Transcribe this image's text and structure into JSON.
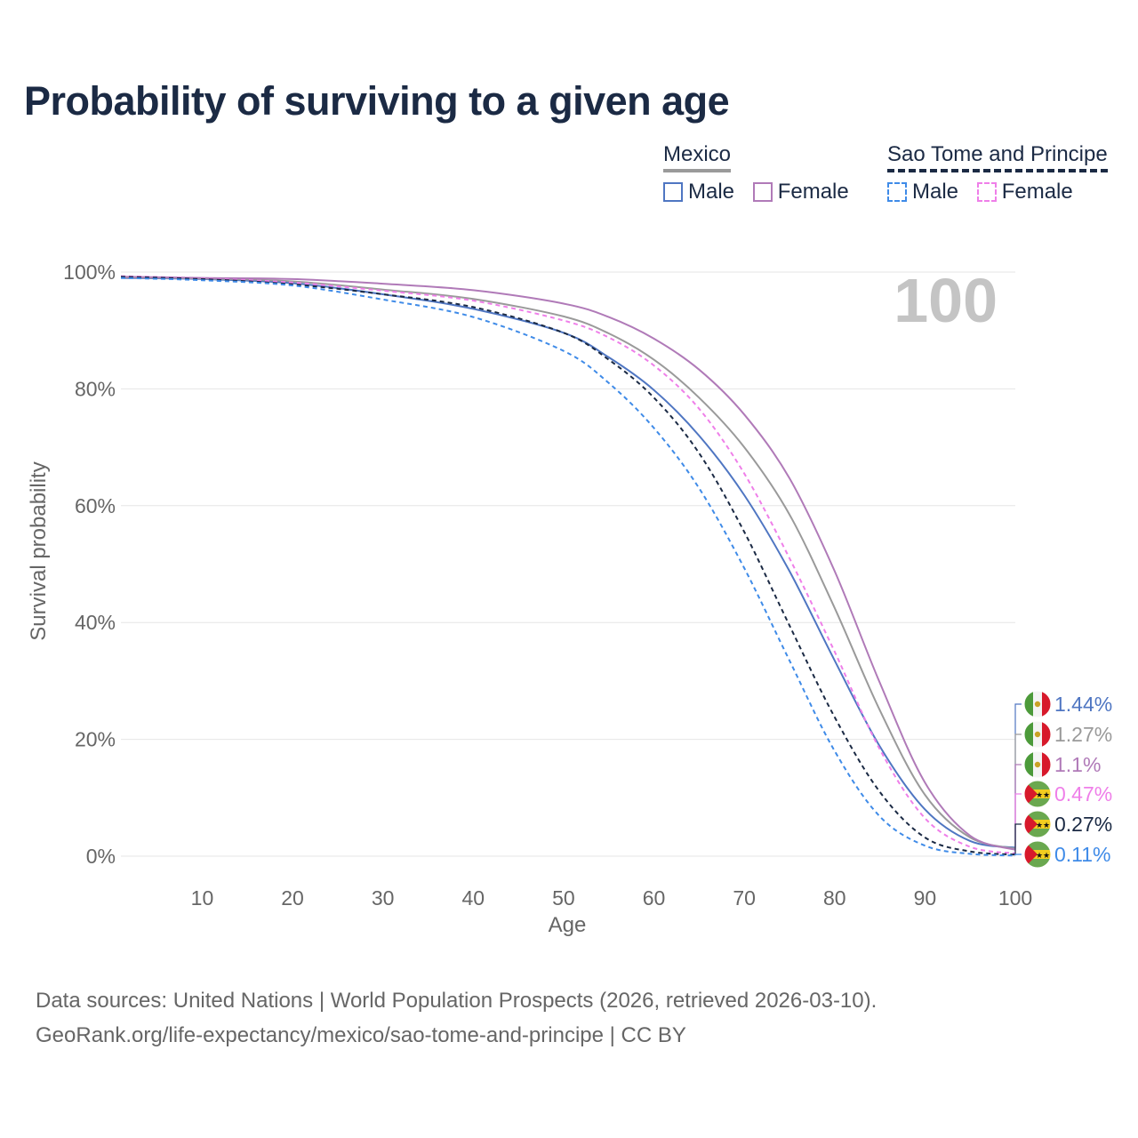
{
  "title": "Probability of surviving to a given age",
  "legend": {
    "groups": [
      {
        "name": "Mexico",
        "items": [
          "Male",
          "Female"
        ]
      },
      {
        "name": "Sao Tome and Principe",
        "items": [
          "Male",
          "Female"
        ]
      }
    ]
  },
  "colors": {
    "mexico_male": "#4f76c2",
    "mexico_female": "#b07ab8",
    "mexico_total": "#9a9a9a",
    "stp_male": "#3f8be8",
    "stp_female": "#ef7fe9",
    "stp_total": "#1b2a44"
  },
  "chart_data": {
    "type": "line",
    "xlabel": "Age",
    "ylabel": "Survival probability",
    "xlim": [
      1,
      100
    ],
    "ylim": [
      0,
      100
    ],
    "x_ticks": [
      10,
      20,
      30,
      40,
      50,
      60,
      70,
      80,
      90,
      100
    ],
    "y_ticks": [
      "0%",
      "20%",
      "40%",
      "60%",
      "80%",
      "100%"
    ],
    "y_tick_values": [
      0,
      20,
      40,
      60,
      80,
      100
    ],
    "age_label": "100",
    "x": [
      1,
      10,
      20,
      30,
      40,
      50,
      55,
      60,
      65,
      70,
      75,
      80,
      85,
      90,
      95,
      100
    ],
    "series": [
      {
        "name": "Mexico Male",
        "key": "mexico_male",
        "dash": false,
        "values": [
          99.0,
          98.8,
          98.1,
          96.2,
          93.7,
          89.6,
          85.4,
          79.8,
          72.0,
          61.8,
          48.8,
          33.5,
          18.8,
          8.0,
          2.6,
          1.44
        ]
      },
      {
        "name": "Mexico Total",
        "key": "mexico_total",
        "dash": false,
        "values": [
          99.1,
          98.9,
          98.4,
          97.0,
          95.4,
          92.4,
          89.5,
          85.0,
          78.5,
          70.0,
          58.5,
          42.5,
          25.0,
          10.5,
          3.2,
          1.27
        ]
      },
      {
        "name": "Mexico Female",
        "key": "mexico_female",
        "dash": false,
        "values": [
          99.2,
          99.0,
          98.8,
          98.0,
          96.9,
          94.6,
          92.3,
          88.6,
          83.3,
          75.6,
          64.7,
          48.8,
          29.7,
          12.6,
          3.5,
          1.1
        ]
      },
      {
        "name": "Sao Tome and Principe Female",
        "key": "stp_female",
        "dash": true,
        "values": [
          99.3,
          98.9,
          98.2,
          96.8,
          95.1,
          91.7,
          88.8,
          84.0,
          76.6,
          65.5,
          51.0,
          35.0,
          18.3,
          6.5,
          1.6,
          0.47
        ]
      },
      {
        "name": "Sao Tome and Principe Total",
        "key": "stp_total",
        "dash": true,
        "values": [
          99.2,
          98.8,
          97.9,
          96.2,
          94.0,
          89.6,
          85.0,
          78.5,
          69.0,
          55.5,
          39.5,
          23.8,
          11.0,
          3.2,
          0.8,
          0.27
        ]
      },
      {
        "name": "Sao Tome and Principe Male",
        "key": "stp_male",
        "dash": true,
        "values": [
          99.0,
          98.6,
          97.7,
          95.3,
          92.3,
          86.5,
          81.0,
          73.3,
          63.0,
          49.3,
          33.5,
          18.0,
          6.8,
          1.8,
          0.4,
          0.11
        ]
      }
    ],
    "end_labels": [
      {
        "text": "1.44%",
        "country": "Mexico",
        "key": "mexico_male"
      },
      {
        "text": "1.27%",
        "country": "Mexico",
        "key": "mexico_total"
      },
      {
        "text": "1.1%",
        "country": "Mexico",
        "key": "mexico_female"
      },
      {
        "text": "0.47%",
        "country": "Sao Tome and Principe",
        "key": "stp_female"
      },
      {
        "text": "0.27%",
        "country": "Sao Tome and Principe",
        "key": "stp_total"
      },
      {
        "text": "0.11%",
        "country": "Sao Tome and Principe",
        "key": "stp_male"
      }
    ]
  },
  "footer": {
    "line1": "Data sources: United Nations | World Population Prospects (2026, retrieved 2026-03-10).",
    "line2": "GeoRank.org/life-expectancy/mexico/sao-tome-and-principe | CC BY"
  }
}
